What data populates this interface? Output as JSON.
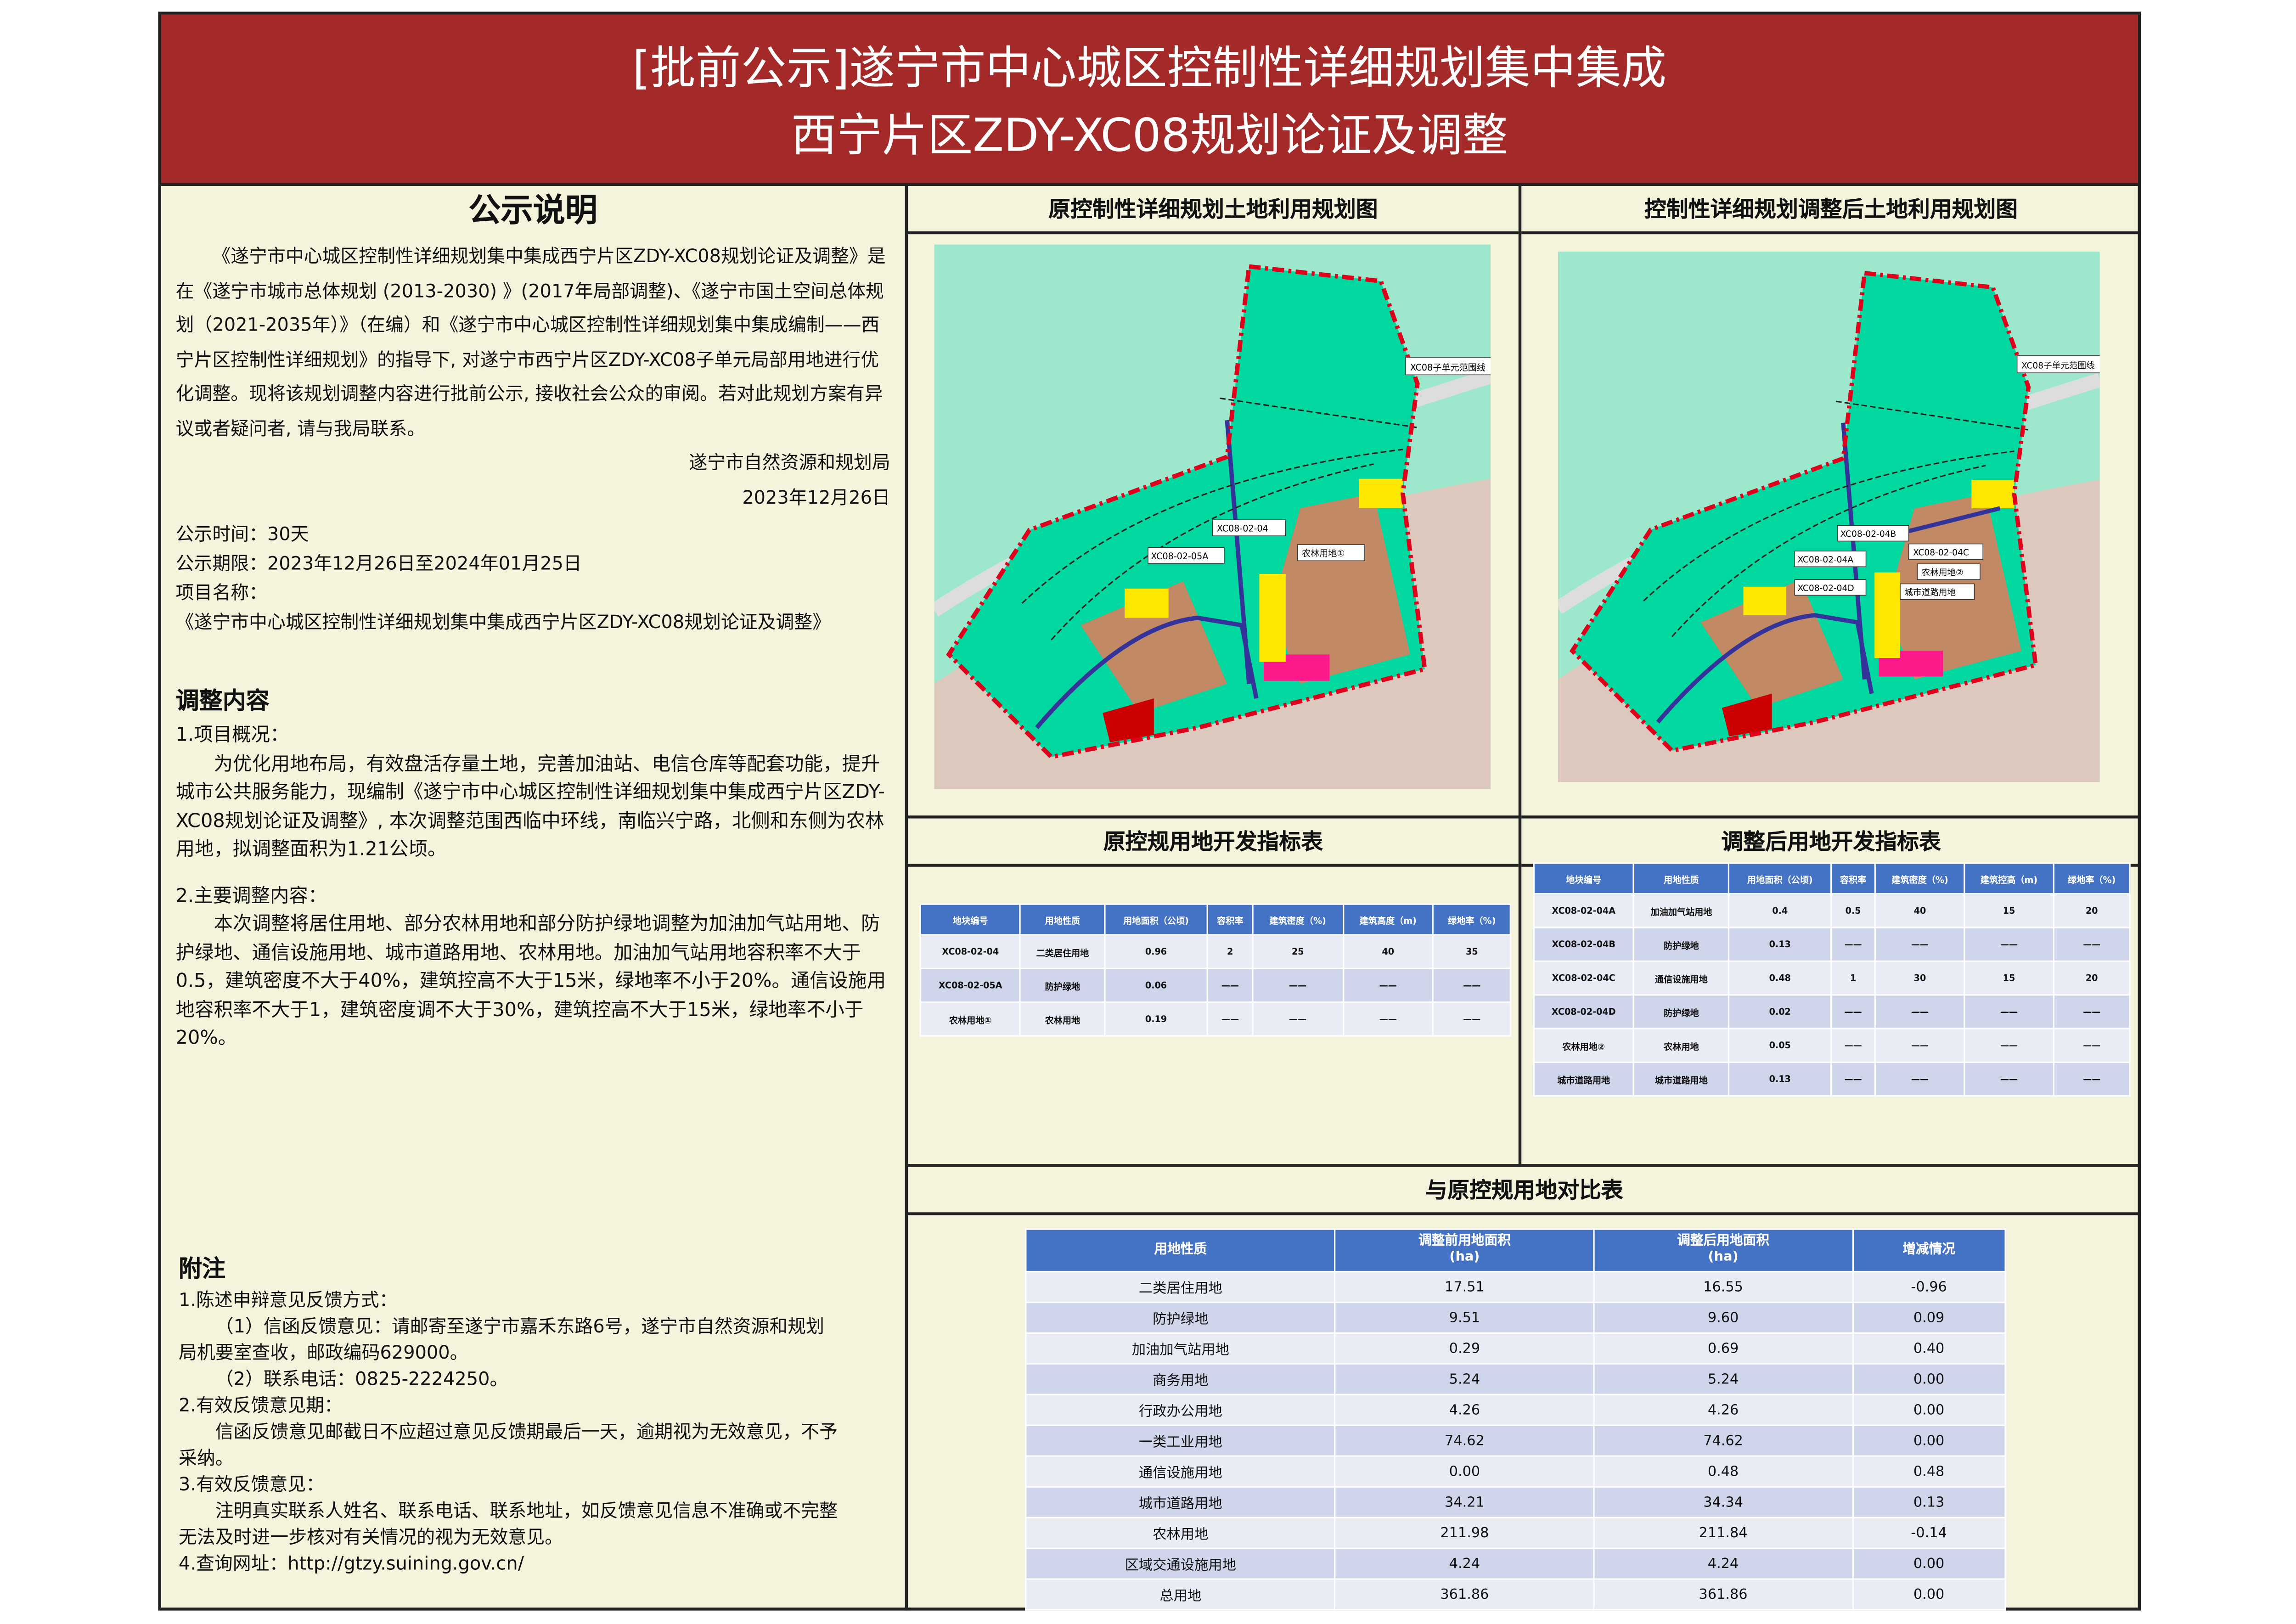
{
  "title": {
    "line1": "[批前公示]遂宁市中心城区控制性详细规划集中集成",
    "line2": "西宁片区ZDY-XC08规划论证及调整"
  },
  "notice": {
    "heading": "公示说明",
    "body": "《遂宁市中心城区控制性详细规划集中集成西宁片区ZDY-XC08规划论证及调整》是在《遂宁市城市总体规划 (2013-2030) 》(2017年局部调整)、《遂宁市国土空间总体规划（2021-2035年）》（在编）和《遂宁市中心城区控制性详细规划集中集成编制——西宁片区控制性详细规划》的指导下, 对遂宁市西宁片区ZDY-XC08子单元局部用地进行优化调整。现将该规划调整内容进行批前公示, 接收社会公众的审阅。若对此规划方案有异议或者疑问者, 请与我局联系。",
    "org": "遂宁市自然资源和规划局",
    "date": "2023年12月26日",
    "period": "公示时间：30天",
    "term": "公示期限：2023年12月26日至2024年01月25日",
    "project_label": "项目名称：",
    "project_name": "《遂宁市中心城区控制性详细规划集中集成西宁片区ZDY-XC08规划论证及调整》"
  },
  "adjust": {
    "heading": "调整内容",
    "p1_title": "1.项目概况：",
    "p1": "为优化用地布局，有效盘活存量土地，完善加油站、电信仓库等配套功能，提升城市公共服务能力，现编制《遂宁市中心城区控制性详细规划集中集成西宁片区ZDY-XC08规划论证及调整》, 本次调整范围西临中环线，南临兴宁路，北侧和东侧为农林用地，拟调整面积为1.21公顷。",
    "p2_title": "2.主要调整内容：",
    "p2": "本次调整将居住用地、部分农林用地和部分防护绿地调整为加油加气站用地、防护绿地、通信设施用地、城市道路用地、农林用地。加油加气站用地容积率不大于0.5，建筑密度不大于40%，建筑控高不大于15米，绿地率不小于20%。通信设施用地容积率不大于1，建筑密度调不大于30%，建筑控高不大于15米，绿地率不小于20%。"
  },
  "appendix": {
    "heading": "附注",
    "lines": [
      "1.陈述申辩意见反馈方式：",
      "（1）信函反馈意见：请邮寄至遂宁市嘉禾东路6号，遂宁市自然资源和规划局机要室查收，邮政编码629000。",
      "（2）联系电话：0825-2224250。",
      "2.有效反馈意见期：",
      "信函反馈意见邮截日不应超过意见反馈期最后一天，逾期视为无效意见，不予采纳。",
      "3.有效反馈意见：",
      "注明真实联系人姓名、联系电话、联系地址，如反馈意见信息不准确或不完整无法及时进一步核对有关情况的视为无效意见。",
      "4.查询网址：http://gtzy.suining.gov.cn/"
    ]
  },
  "maps": {
    "original": {
      "title": "原控制性详细规划土地利用规划图",
      "labels": [
        "XC08子单元范围线",
        "XC08-02-04",
        "XC08-02-05A",
        "农林用地①"
      ]
    },
    "adjusted": {
      "title": "控制性详细规划调整后土地利用规划图",
      "labels": [
        "XC08子单元范围线",
        "XC08-02-04B",
        "XC08-02-04A",
        "XC08-02-04C",
        "农林用地②",
        "XC08-02-04D",
        "城市道路用地"
      ]
    }
  },
  "colors": {
    "title_bg": "#a32a29",
    "panel_bg": "#f4f4dc",
    "table_header": "#4472c4",
    "boundary": "#e0001b",
    "green_land": "#00d8a0"
  },
  "orig_table": {
    "title": "原控规用地开发指标表",
    "headers": [
      "地块编号",
      "用地性质",
      "用地面积（公顷)",
      "容积率",
      "建筑密度（%)",
      "建筑高度（m)",
      "绿地率（%)"
    ],
    "rows": [
      [
        "XC08-02-04",
        "二类居住用地",
        "0.96",
        "2",
        "25",
        "40",
        "35"
      ],
      [
        "XC08-02-05A",
        "防护绿地",
        "0.06",
        "——",
        "——",
        "——",
        "——"
      ],
      [
        "农林用地①",
        "农林用地",
        "0.19",
        "——",
        "——",
        "——",
        "——"
      ]
    ]
  },
  "new_table": {
    "title": "调整后用地开发指标表",
    "headers": [
      "地块编号",
      "用地性质",
      "用地面积（公顷)",
      "容积率",
      "建筑密度（%)",
      "建筑控高（m)",
      "绿地率（%)"
    ],
    "rows": [
      [
        "XC08-02-04A",
        "加油加气站用地",
        "0.4",
        "0.5",
        "40",
        "15",
        "20"
      ],
      [
        "XC08-02-04B",
        "防护绿地",
        "0.13",
        "——",
        "——",
        "——",
        "——"
      ],
      [
        "XC08-02-04C",
        "通信设施用地",
        "0.48",
        "1",
        "30",
        "15",
        "20"
      ],
      [
        "XC08-02-04D",
        "防护绿地",
        "0.02",
        "——",
        "——",
        "——",
        "——"
      ],
      [
        "农林用地②",
        "农林用地",
        "0.05",
        "——",
        "——",
        "——",
        "——"
      ],
      [
        "城市道路用地",
        "城市道路用地",
        "0.13",
        "——",
        "——",
        "——",
        "——"
      ]
    ]
  },
  "compare": {
    "title": "与原控规用地对比表",
    "headers": [
      "用地性质",
      "调整前用地面积\n(ha)",
      "调整后用地面积\n(ha)",
      "增减情况"
    ],
    "rows": [
      [
        "二类居住用地",
        "17.51",
        "16.55",
        "-0.96"
      ],
      [
        "防护绿地",
        "9.51",
        "9.60",
        "0.09"
      ],
      [
        "加油加气站用地",
        "0.29",
        "0.69",
        "0.40"
      ],
      [
        "商务用地",
        "5.24",
        "5.24",
        "0.00"
      ],
      [
        "行政办公用地",
        "4.26",
        "4.26",
        "0.00"
      ],
      [
        "一类工业用地",
        "74.62",
        "74.62",
        "0.00"
      ],
      [
        "通信设施用地",
        "0.00",
        "0.48",
        "0.48"
      ],
      [
        "城市道路用地",
        "34.21",
        "34.34",
        "0.13"
      ],
      [
        "农林用地",
        "211.98",
        "211.84",
        "-0.14"
      ],
      [
        "区域交通设施用地",
        "4.24",
        "4.24",
        "0.00"
      ],
      [
        "总用地",
        "361.86",
        "361.86",
        "0.00"
      ]
    ]
  }
}
